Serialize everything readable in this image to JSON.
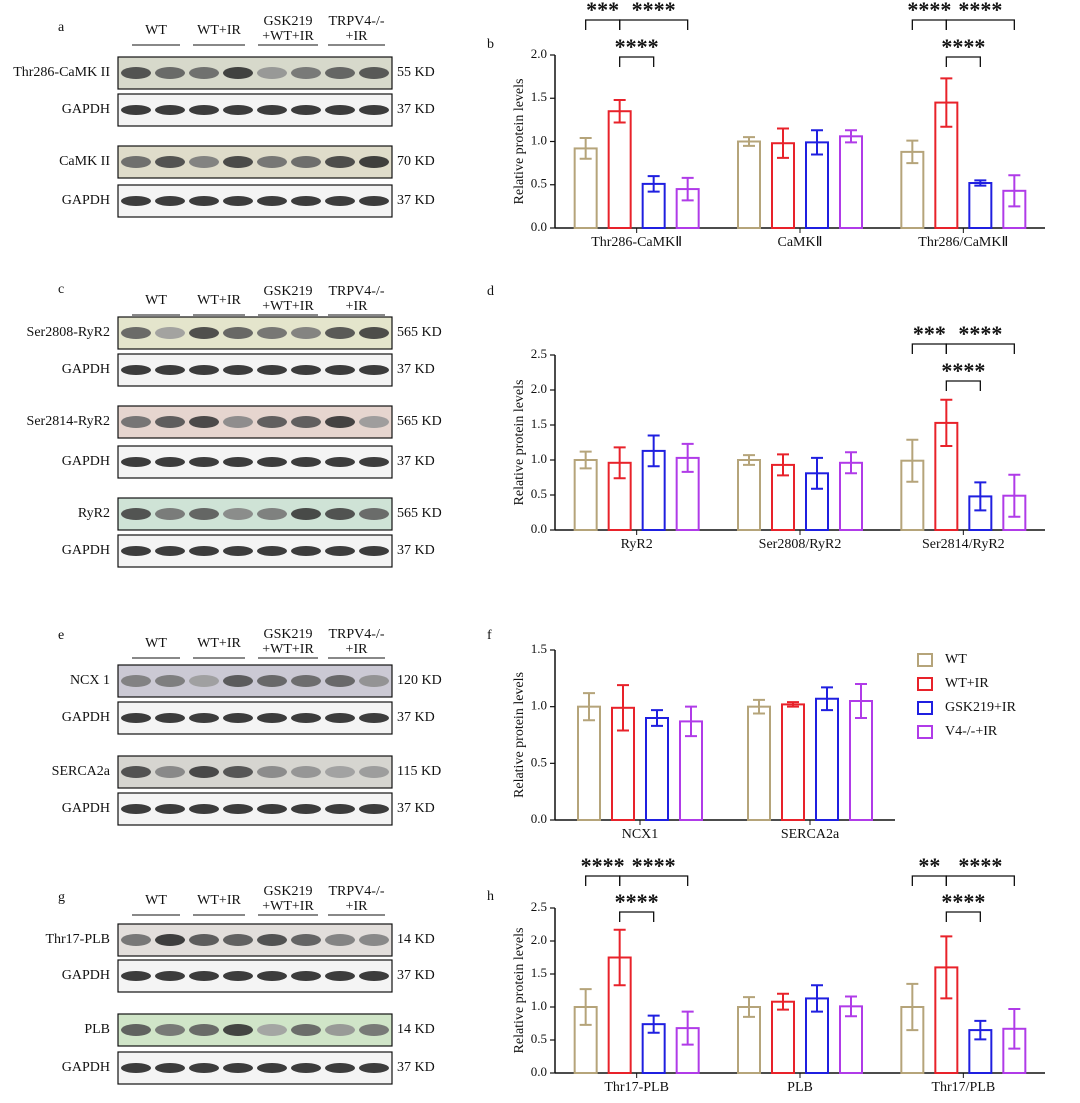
{
  "blots": [
    {
      "panel": "a",
      "groups": [
        [
          "WT"
        ],
        [
          "WT+IR"
        ],
        [
          "GSK219",
          "+WT+IR"
        ],
        [
          "TRPV4-/-",
          "+IR"
        ]
      ],
      "rows": [
        {
          "label": "Thr286-CaMK II",
          "size": "55 KD"
        },
        {
          "label": "GAPDH",
          "size": "37 KD"
        },
        {
          "label": "CaMK II",
          "size": "70 KD"
        },
        {
          "label": "GAPDH",
          "size": "37 KD"
        }
      ]
    },
    {
      "panel": "c",
      "groups": [
        [
          "WT"
        ],
        [
          "WT+IR"
        ],
        [
          "GSK219",
          "+WT+IR"
        ],
        [
          "TRPV4-/-",
          "+IR"
        ]
      ],
      "rows": [
        {
          "label": "Ser2808-RyR2",
          "size": "565 KD"
        },
        {
          "label": "GAPDH",
          "size": "37 KD"
        },
        {
          "label": "Ser2814-RyR2",
          "size": "565 KD"
        },
        {
          "label": "GAPDH",
          "size": "37 KD"
        },
        {
          "label": "RyR2",
          "size": "565 KD"
        },
        {
          "label": "GAPDH",
          "size": "37 KD"
        }
      ]
    },
    {
      "panel": "e",
      "groups": [
        [
          "WT"
        ],
        [
          "WT+IR"
        ],
        [
          "GSK219",
          "+WT+IR"
        ],
        [
          "TRPV4-/-",
          "+IR"
        ]
      ],
      "rows": [
        {
          "label": "NCX 1",
          "size": "120 KD"
        },
        {
          "label": "GAPDH",
          "size": "37 KD"
        },
        {
          "label": "SERCA2a",
          "size": "115 KD"
        },
        {
          "label": "GAPDH",
          "size": "37 KD"
        }
      ]
    },
    {
      "panel": "g",
      "groups": [
        [
          "WT"
        ],
        [
          "WT+IR"
        ],
        [
          "GSK219",
          "+WT+IR"
        ],
        [
          "TRPV4-/-",
          "+IR"
        ]
      ],
      "rows": [
        {
          "label": "Thr17-PLB",
          "size": "14 KD"
        },
        {
          "label": "GAPDH",
          "size": "37 KD"
        },
        {
          "label": "PLB",
          "size": "14 KD"
        },
        {
          "label": "GAPDH",
          "size": "37 KD"
        }
      ]
    }
  ],
  "chart_data": [
    {
      "type": "bar",
      "panel": "b",
      "ylabel": "Relative protein levels",
      "categories": [
        "Thr286-CaMKⅡ",
        "CaMKⅡ",
        "Thr286/CaMKⅡ"
      ],
      "series": [
        {
          "name": "WT",
          "color": "#b5a47a",
          "values": [
            0.92,
            1.0,
            0.88
          ],
          "errors": [
            0.12,
            0.05,
            0.13
          ]
        },
        {
          "name": "WT+IR",
          "color": "#e8222a",
          "values": [
            1.35,
            0.98,
            1.45
          ],
          "errors": [
            0.13,
            0.17,
            0.28
          ]
        },
        {
          "name": "GSK219+IR",
          "color": "#1f1fe0",
          "values": [
            0.51,
            0.99,
            0.52
          ],
          "errors": [
            0.09,
            0.14,
            0.03
          ]
        },
        {
          "name": "V4-/-+IR",
          "color": "#b03be8",
          "values": [
            0.45,
            1.06,
            0.43
          ],
          "errors": [
            0.13,
            0.07,
            0.18
          ]
        }
      ],
      "ylim": [
        0,
        2
      ],
      "yticks": [
        {
          "value": 0,
          "label": "0.0"
        },
        0.5,
        {
          "value": 1,
          "label": "1.0"
        },
        1.5,
        {
          "value": 2,
          "label": "2.0"
        }
      ],
      "annotations": [
        "***",
        "****",
        "****",
        "****",
        "****",
        "****"
      ]
    },
    {
      "type": "bar",
      "panel": "d",
      "ylabel": "Relative protein levels",
      "categories": [
        "RyR2",
        "Ser2808/RyR2",
        "Ser2814/RyR2"
      ],
      "series": [
        {
          "name": "WT",
          "color": "#b5a47a",
          "values": [
            1.0,
            1.0,
            0.99
          ],
          "errors": [
            0.12,
            0.07,
            0.3
          ]
        },
        {
          "name": "WT+IR",
          "color": "#e8222a",
          "values": [
            0.96,
            0.93,
            1.53
          ],
          "errors": [
            0.22,
            0.15,
            0.33
          ]
        },
        {
          "name": "GSK219+IR",
          "color": "#1f1fe0",
          "values": [
            1.13,
            0.81,
            0.48
          ],
          "errors": [
            0.22,
            0.22,
            0.2
          ]
        },
        {
          "name": "V4-/-+IR",
          "color": "#b03be8",
          "values": [
            1.03,
            0.96,
            0.49
          ],
          "errors": [
            0.2,
            0.15,
            0.3
          ]
        }
      ],
      "ylim": [
        0,
        2.5
      ],
      "yticks": [
        {
          "value": 0,
          "label": "0.0"
        },
        0.5,
        {
          "value": 1,
          "label": "1.0"
        },
        1.5,
        {
          "value": 2,
          "label": "2.0"
        },
        2.5
      ],
      "annotations": [
        "***",
        "****",
        "****"
      ]
    },
    {
      "type": "bar",
      "panel": "f",
      "ylabel": "Relative protein levels",
      "legend": "right",
      "categories": [
        "NCX1",
        "SERCA2a"
      ],
      "series": [
        {
          "name": "WT",
          "color": "#b5a47a",
          "values": [
            1.0,
            1.0
          ],
          "errors": [
            0.12,
            0.06
          ]
        },
        {
          "name": "WT+IR",
          "color": "#e8222a",
          "values": [
            0.99,
            1.02
          ],
          "errors": [
            0.2,
            0.02
          ]
        },
        {
          "name": "GSK219+IR",
          "color": "#1f1fe0",
          "values": [
            0.9,
            1.07
          ],
          "errors": [
            0.07,
            0.1
          ]
        },
        {
          "name": "V4-/-+IR",
          "color": "#b03be8",
          "values": [
            0.87,
            1.05
          ],
          "errors": [
            0.13,
            0.15
          ]
        }
      ],
      "ylim": [
        0,
        1.5
      ],
      "yticks": [
        {
          "value": 0,
          "label": "0.0"
        },
        0.5,
        {
          "value": 1,
          "label": "1.0"
        },
        1.5
      ]
    },
    {
      "type": "bar",
      "panel": "h",
      "ylabel": "Relative protein levels",
      "categories": [
        "Thr17-PLB",
        "PLB",
        "Thr17/PLB"
      ],
      "series": [
        {
          "name": "WT",
          "color": "#b5a47a",
          "values": [
            1.0,
            1.0,
            1.0
          ],
          "errors": [
            0.27,
            0.15,
            0.35
          ]
        },
        {
          "name": "WT+IR",
          "color": "#e8222a",
          "values": [
            1.75,
            1.08,
            1.6
          ],
          "errors": [
            0.42,
            0.12,
            0.47
          ]
        },
        {
          "name": "GSK219+IR",
          "color": "#1f1fe0",
          "values": [
            0.74,
            1.13,
            0.65
          ],
          "errors": [
            0.13,
            0.2,
            0.14
          ]
        },
        {
          "name": "V4-/-+IR",
          "color": "#b03be8",
          "values": [
            0.68,
            1.01,
            0.67
          ],
          "errors": [
            0.25,
            0.15,
            0.3
          ]
        }
      ],
      "ylim": [
        0,
        2.5
      ],
      "yticks": [
        {
          "value": 0,
          "label": "0.0"
        },
        0.5,
        {
          "value": 1,
          "label": "1.0"
        },
        1.5,
        {
          "value": 2,
          "label": "2.0"
        },
        2.5
      ],
      "annotations": [
        "****",
        "****",
        "****",
        "**",
        "****",
        "****"
      ]
    }
  ]
}
